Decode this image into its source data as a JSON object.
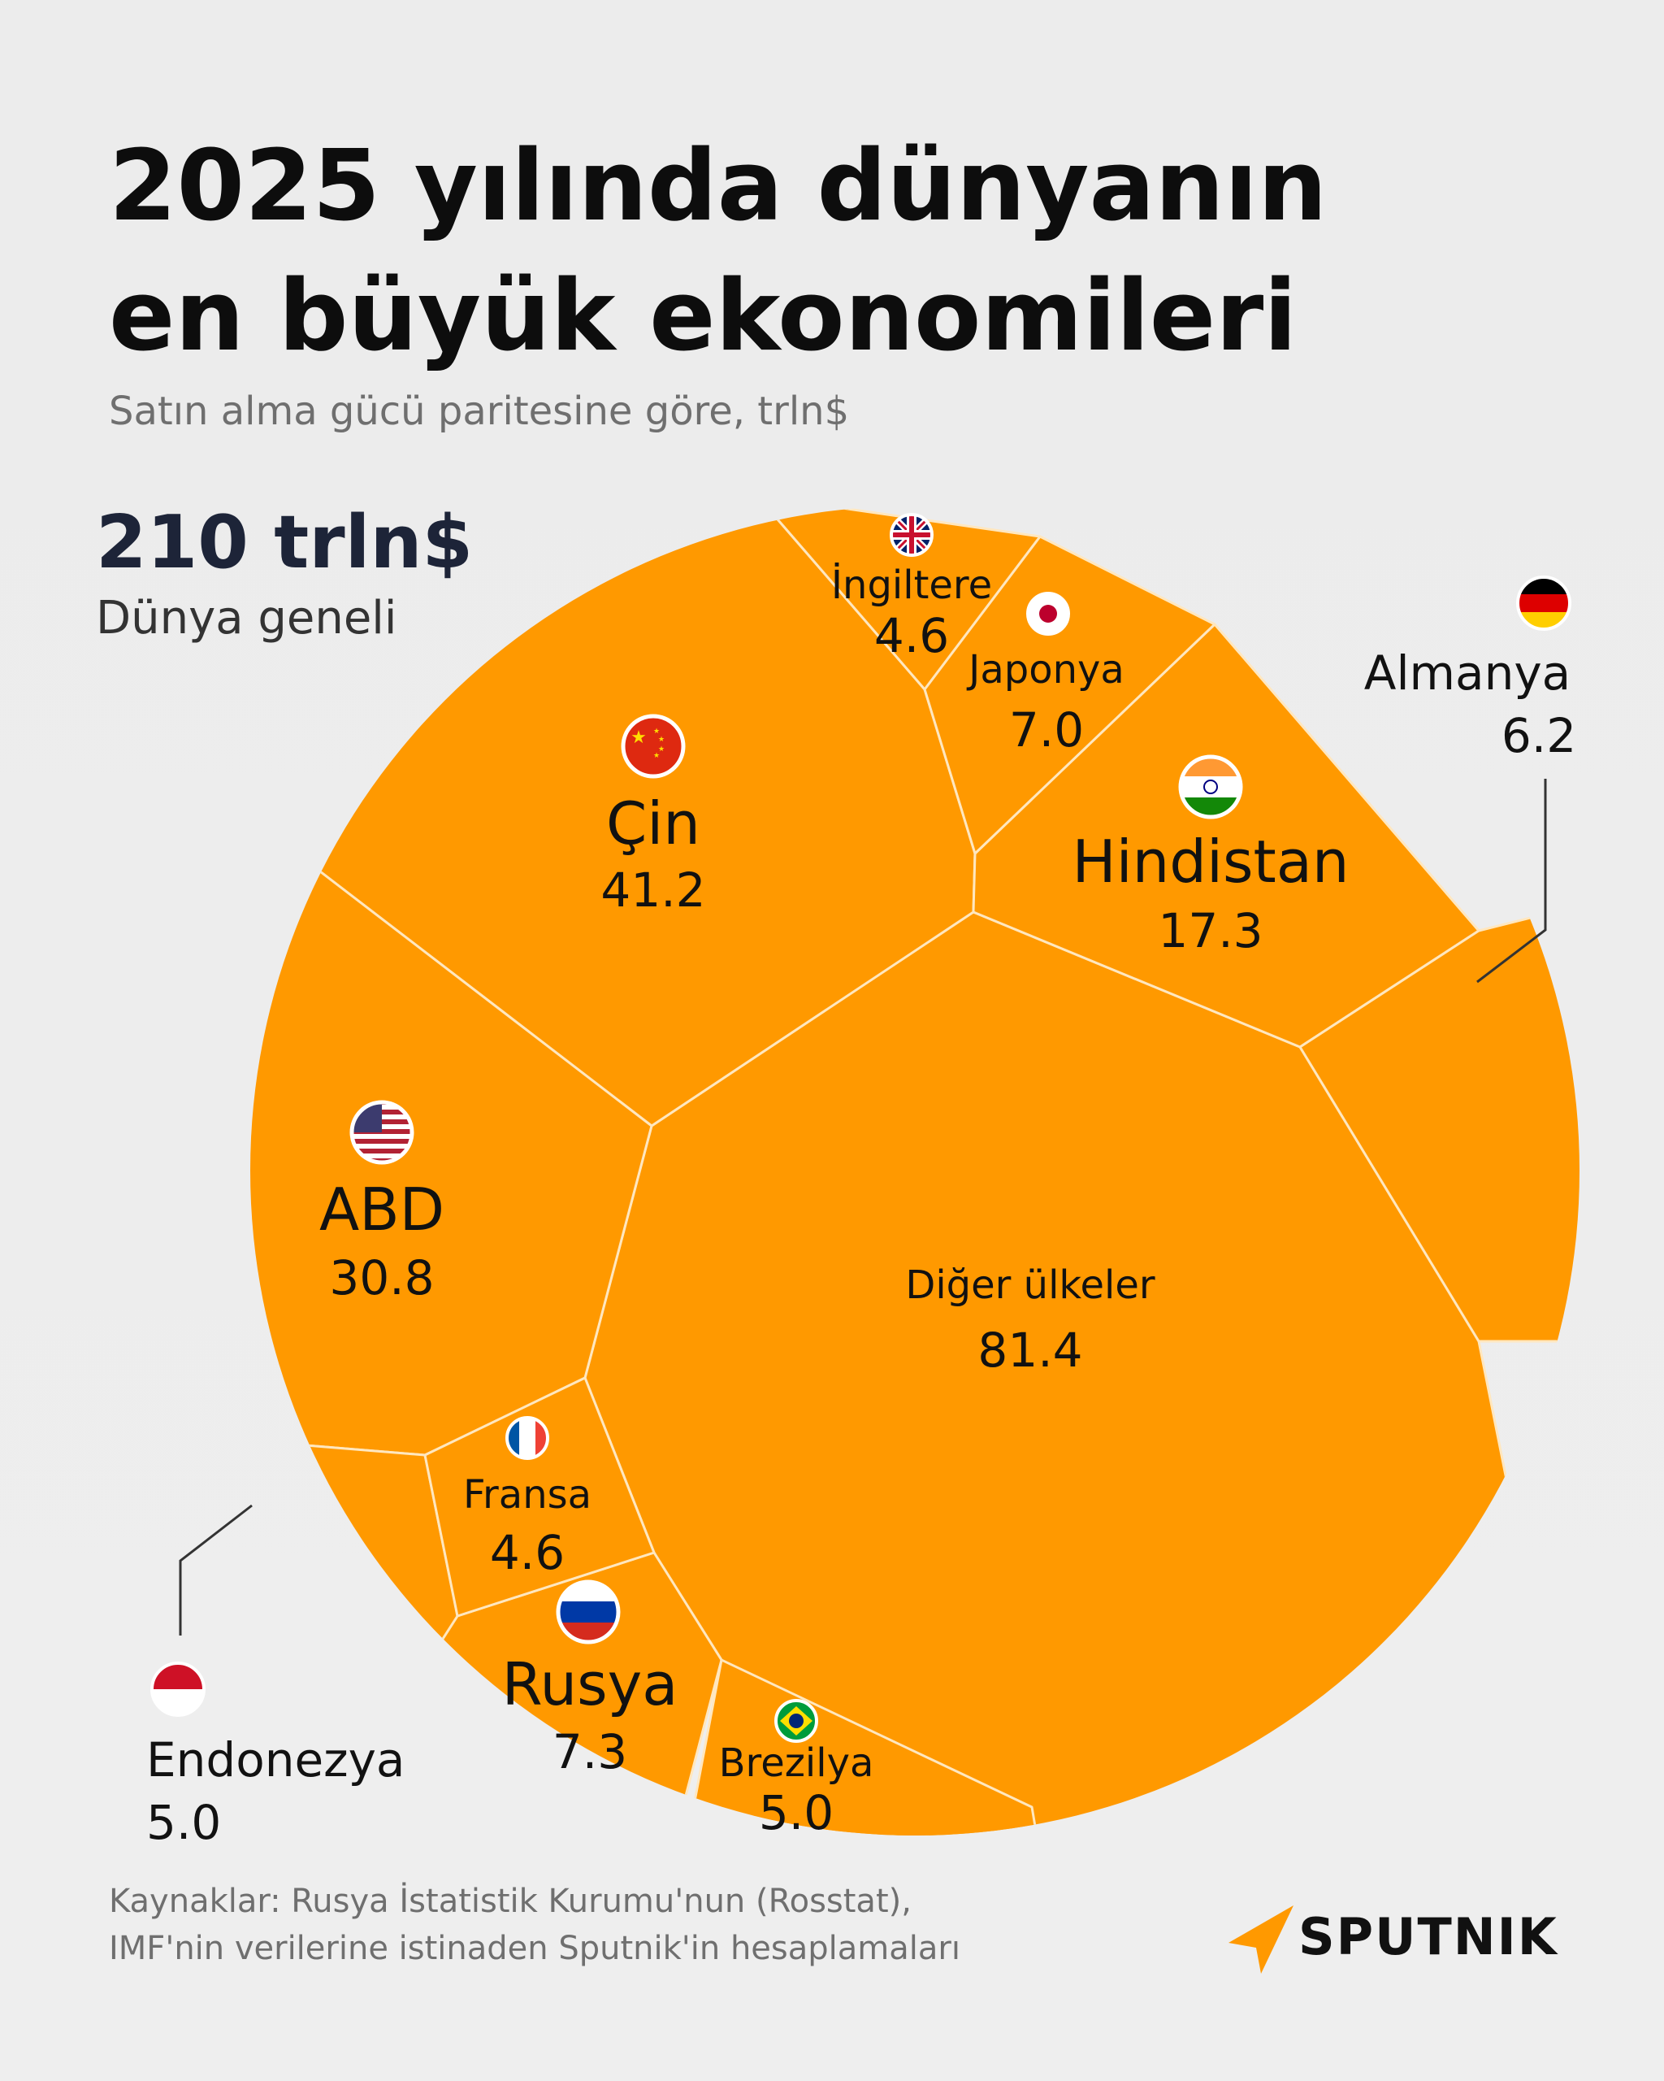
{
  "header": {
    "title_line1": "2025 yılında dünyanın",
    "title_line2": "en büyük ekonomileri",
    "subtitle": "Satın alma gücü paritesine göre, trln$"
  },
  "total": {
    "value": "210 trln$",
    "label": "Dünya geneli"
  },
  "colors": {
    "cell": "#FF9900",
    "border": "#FFE7BF",
    "background": "#EEEEEE",
    "text": "#111111",
    "leader": "#333333"
  },
  "chart_data": {
    "type": "voronoi-treemap",
    "unit": "trln$",
    "total": 210,
    "cells": [
      {
        "name": "Diğer ülkeler",
        "value": 81.4,
        "icon": "none"
      },
      {
        "name": "Çin",
        "value": 41.2,
        "icon": "flag-china-icon"
      },
      {
        "name": "ABD",
        "value": 30.8,
        "icon": "flag-usa-icon"
      },
      {
        "name": "Hindistan",
        "value": 17.3,
        "icon": "flag-india-icon"
      },
      {
        "name": "Rusya",
        "value": 7.3,
        "icon": "flag-russia-icon"
      },
      {
        "name": "Japonya",
        "value": 7.0,
        "icon": "flag-japan-icon"
      },
      {
        "name": "Almanya",
        "value": 6.2,
        "icon": "flag-germany-icon"
      },
      {
        "name": "Endonezya",
        "value": 5.0,
        "icon": "flag-indonesia-icon"
      },
      {
        "name": "Brezilya",
        "value": 5.0,
        "icon": "flag-brazil-icon"
      },
      {
        "name": "İngiltere",
        "value": 4.6,
        "icon": "flag-uk-icon"
      },
      {
        "name": "Fransa",
        "value": 4.6,
        "icon": "flag-france-icon"
      }
    ]
  },
  "labels": {
    "diger": {
      "name": "Diğer ülkeler",
      "value": "81.4"
    },
    "cin": {
      "name": "Çin",
      "value": "41.2"
    },
    "abd": {
      "name": "ABD",
      "value": "30.8"
    },
    "hindistan": {
      "name": "Hindistan",
      "value": "17.3"
    },
    "rusya": {
      "name": "Rusya",
      "value": "7.3"
    },
    "japonya": {
      "name": "Japonya",
      "value": "7.0"
    },
    "almanya": {
      "name": "Almanya",
      "value": "6.2"
    },
    "endonezya": {
      "name": "Endonezya",
      "value": "5.0"
    },
    "brezilya": {
      "name": "Brezilya",
      "value": "5.0"
    },
    "ingiltere": {
      "name": "İngiltere",
      "value": "4.6"
    },
    "fransa": {
      "name": "Fransa",
      "value": "4.6"
    }
  },
  "source": {
    "line1": "Kaynaklar: Rusya İstatistik Kurumu'nun (Rosstat),",
    "line2": "IMF'nin verilerine istinaden Sputnik'in hesaplamaları"
  },
  "brand": {
    "name": "SPUTNIK",
    "icon": "sputnik-logo-icon"
  }
}
